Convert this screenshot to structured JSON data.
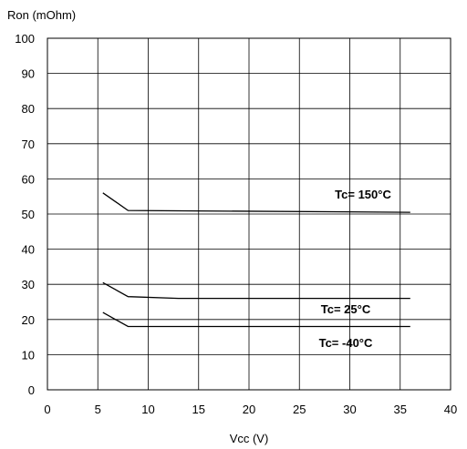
{
  "chart_data": {
    "type": "line",
    "title": "",
    "xlabel": "Vcc (V)",
    "ylabel": "Ron (mOhm)",
    "xlim": [
      0,
      40
    ],
    "ylim": [
      0,
      100
    ],
    "xticks": [
      "0",
      "5",
      "10",
      "15",
      "20",
      "25",
      "30",
      "35",
      "40"
    ],
    "yticks": [
      "0",
      "10",
      "20",
      "30",
      "40",
      "50",
      "60",
      "70",
      "80",
      "90",
      "100"
    ],
    "grid": true,
    "series": [
      {
        "name": "Tc= 150°C",
        "points": [
          [
            5.5,
            56
          ],
          [
            8,
            51
          ],
          [
            36,
            50.5
          ]
        ]
      },
      {
        "name": "Tc= 25°C",
        "points": [
          [
            5.5,
            30.5
          ],
          [
            8,
            26.5
          ],
          [
            13,
            26
          ],
          [
            36,
            26
          ]
        ]
      },
      {
        "name": "Tc= -40°C",
        "points": [
          [
            5.5,
            22
          ],
          [
            8,
            18
          ],
          [
            36,
            18
          ]
        ]
      }
    ]
  }
}
